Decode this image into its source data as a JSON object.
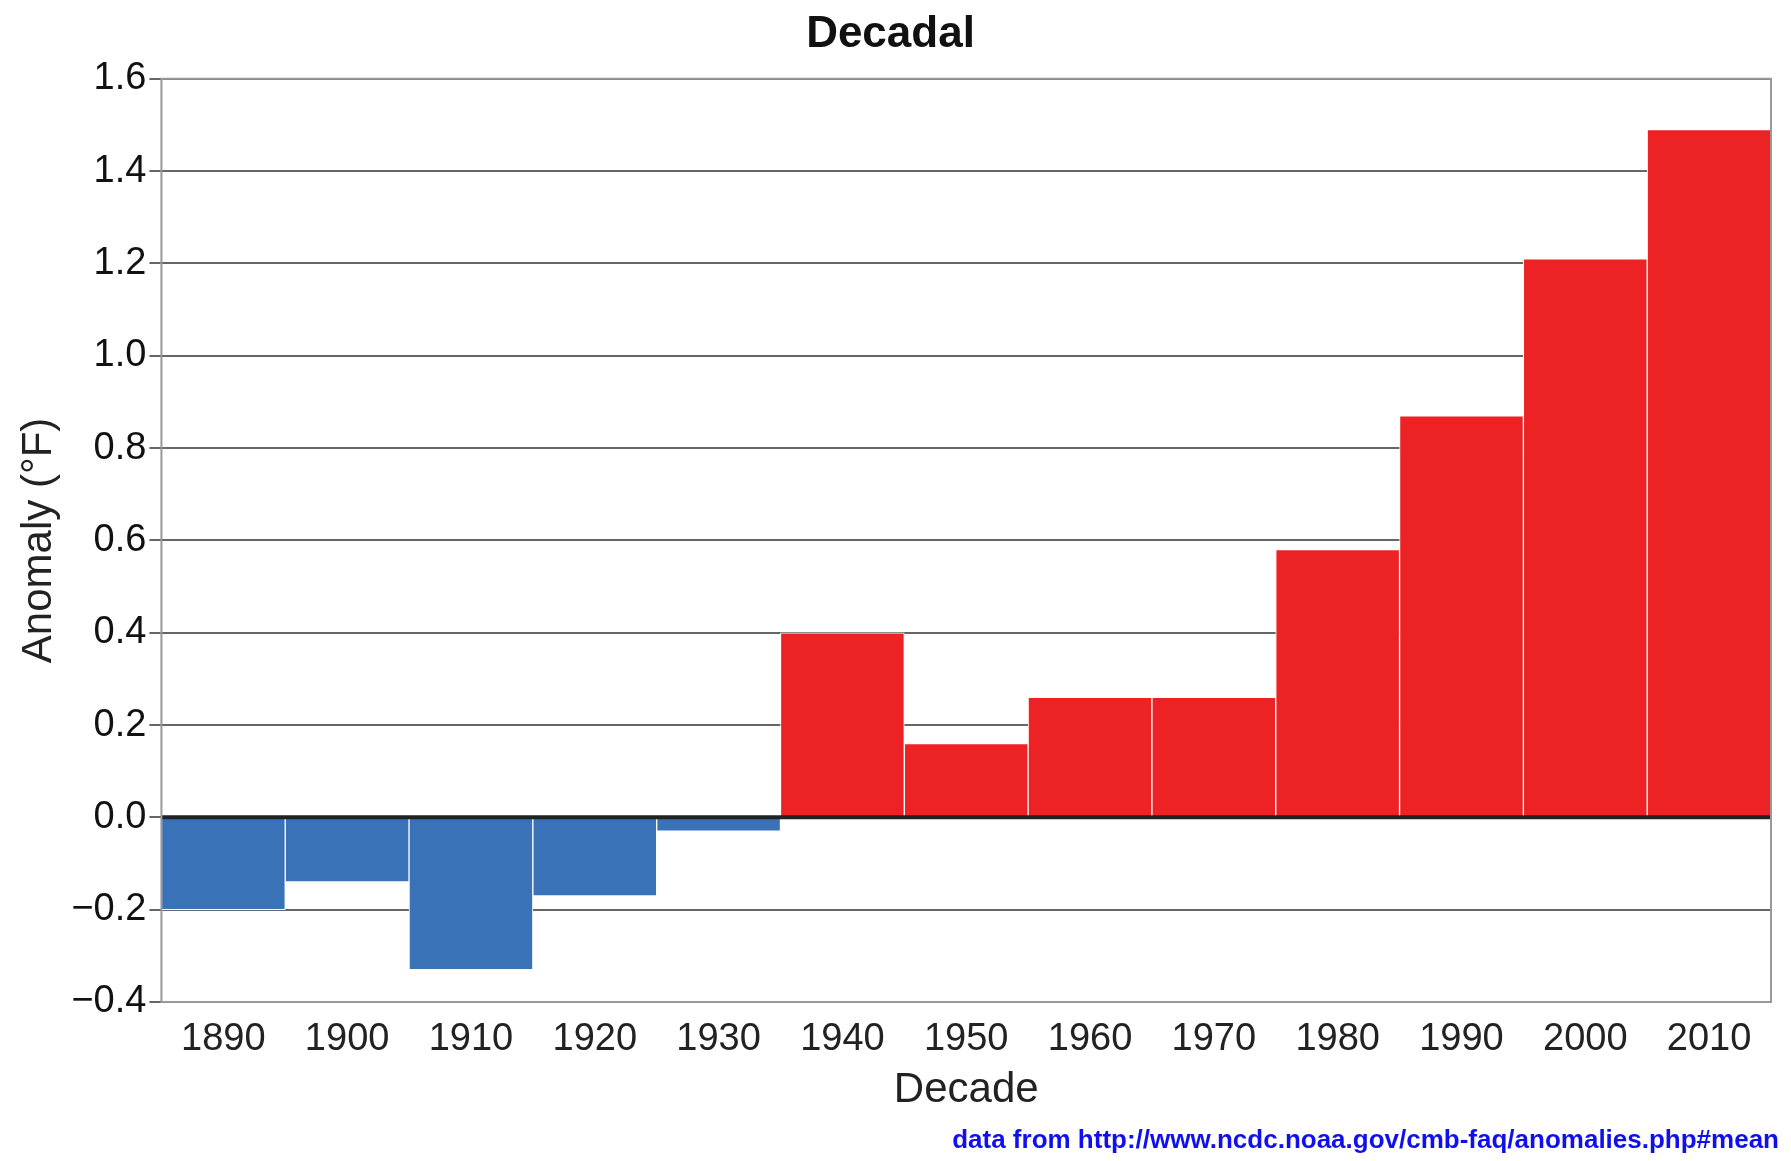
{
  "chart_data": {
    "type": "bar",
    "title": "Decadal",
    "xlabel": "Decade",
    "ylabel": "Anomaly (°F)",
    "categories": [
      "1890",
      "1900",
      "1910",
      "1920",
      "1930",
      "1940",
      "1950",
      "1960",
      "1970",
      "1980",
      "1990",
      "2000",
      "2010"
    ],
    "values": [
      -0.2,
      -0.14,
      -0.33,
      -0.17,
      -0.03,
      0.4,
      0.16,
      0.26,
      0.26,
      0.58,
      0.87,
      1.21,
      1.49
    ],
    "colors": [
      "#3a72b8",
      "#3a72b8",
      "#3a72b8",
      "#3a72b8",
      "#3a72b8",
      "#ed2224",
      "#ed2224",
      "#ed2224",
      "#ed2224",
      "#ed2224",
      "#ed2224",
      "#ed2224",
      "#ed2224"
    ],
    "ylim": [
      -0.4,
      1.6
    ],
    "yticks": [
      {
        "value": -0.4,
        "label": "−0.4"
      },
      {
        "value": -0.2,
        "label": "−0.2"
      },
      {
        "value": 0,
        "label": "0.0"
      },
      {
        "value": 0.2,
        "label": "0.2"
      },
      {
        "value": 0.4,
        "label": "0.4"
      },
      {
        "value": 0.6,
        "label": "0.6"
      },
      {
        "value": 0.8,
        "label": "0.8"
      },
      {
        "value": 1.0,
        "label": "1.0"
      },
      {
        "value": 1.2,
        "label": "1.2"
      },
      {
        "value": 1.4,
        "label": "1.4"
      },
      {
        "value": 1.6,
        "label": "1.6"
      }
    ],
    "grid": "y",
    "legend": false,
    "annotations": [
      "data from http://www.ncdc.noaa.gov/cmb-faq/anomalies.php#mean"
    ]
  }
}
